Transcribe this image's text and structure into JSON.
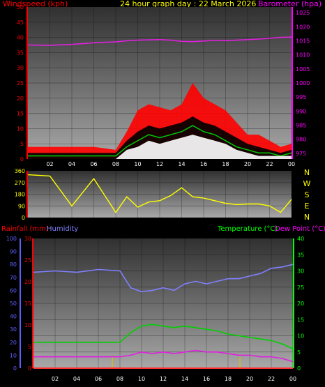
{
  "header": {
    "windspeed_label": "Windspeed (kph)",
    "title": "24 hour graph day : 22 March 2026",
    "barometer_label": "Barometer (hpa)"
  },
  "colors": {
    "wind_avg": "#ff2020",
    "wind_gust": "#ff0000",
    "wind_green": "#00c000",
    "wind_white": "#ffffff",
    "barometer": "#e020e0",
    "direction": "#ffff00",
    "temperature": "#00d000",
    "dewpoint": "#e020e0",
    "humidity": "#8080ff",
    "rainfall": "#ff3030",
    "rain_rate": "#e0c000",
    "axis_red": "#ff0000",
    "axis_magenta": "#ff00ff",
    "axis_green": "#00ff00",
    "axis_blue": "#6060ff",
    "tick_text": "#ffffff",
    "panel_top": "#303030",
    "panel_bottom": "#a8a8a8"
  },
  "chart_data": [
    {
      "type": "area",
      "x_ticks": [
        "02",
        "04",
        "06",
        "08",
        "10",
        "12",
        "14",
        "16",
        "18",
        "20",
        "22",
        "00"
      ],
      "y_left_ticks": [
        "0",
        "5",
        "10",
        "15",
        "20",
        "25",
        "30",
        "35",
        "40",
        "45",
        "50"
      ],
      "y_right_ticks": [
        "975",
        "980",
        "985",
        "990",
        "995",
        "1000",
        "1005",
        "1010",
        "1015",
        "1020",
        "1025"
      ],
      "ylim_left": [
        0,
        50
      ],
      "ylim_right": [
        973,
        1027
      ],
      "x_hours": [
        0,
        2,
        4,
        6,
        8,
        9,
        10,
        11,
        12,
        13,
        14,
        15,
        16,
        17,
        18,
        19,
        20,
        21,
        22,
        23,
        24
      ],
      "wind_gust_kph": [
        4,
        4,
        4,
        4,
        3,
        9,
        16,
        18,
        17,
        16,
        18,
        25,
        20,
        18,
        16,
        12,
        8,
        8,
        6,
        4,
        5
      ],
      "wind_avg_kph": [
        2,
        2,
        2,
        2,
        2,
        6,
        9,
        11,
        10,
        11,
        12,
        14,
        12,
        11,
        9,
        7,
        5,
        4,
        3,
        2,
        3
      ],
      "wind_green_kph": [
        1,
        1,
        1,
        1,
        1,
        4,
        6,
        8,
        7,
        8,
        9,
        11,
        9,
        8,
        6,
        4,
        3,
        2,
        2,
        1,
        2
      ],
      "wind_white_kph": [
        0,
        0,
        0,
        0,
        0,
        3,
        4,
        6,
        5,
        6,
        7,
        8,
        7,
        6,
        5,
        3,
        2,
        1,
        1,
        1,
        1
      ],
      "barometer_hpa": [
        1013.5,
        1013.4,
        1013.7,
        1014.3,
        1014.6,
        1015.0,
        1015.2,
        1015.3,
        1015.4,
        1015.2,
        1014.8,
        1014.7,
        1014.9,
        1015.1,
        1015.0,
        1015.2,
        1015.4,
        1015.6,
        1015.9,
        1016.2,
        1016.3
      ]
    },
    {
      "type": "line",
      "y_ticks": [
        "0",
        "90",
        "180",
        "270",
        "360"
      ],
      "ylim": [
        0,
        360
      ],
      "compass": [
        "N",
        "W",
        "S",
        "E",
        "N"
      ],
      "x_hours": [
        0,
        2,
        4,
        6,
        8,
        9,
        10,
        11,
        12,
        13,
        14,
        15,
        16,
        17,
        18,
        19,
        20,
        21,
        22,
        23,
        24
      ],
      "direction_deg": [
        330,
        320,
        90,
        300,
        40,
        160,
        80,
        120,
        130,
        170,
        230,
        160,
        150,
        130,
        110,
        100,
        105,
        105,
        90,
        40,
        140
      ]
    },
    {
      "type": "line",
      "labels": {
        "rainfall": "Rainfall (mm)",
        "humidity": "Humidity",
        "temperature": "Temperature (°C)",
        "dewpoint": "Dew Point (°C)"
      },
      "x_ticks": [
        "02",
        "04",
        "06",
        "08",
        "10",
        "12",
        "14",
        "16",
        "18",
        "20",
        "22",
        "00"
      ],
      "humidity_ticks": [
        "0",
        "10",
        "20",
        "30",
        "40",
        "50",
        "60",
        "70",
        "80",
        "90",
        "100"
      ],
      "rain_ticks": [
        "0",
        "5",
        "10",
        "15",
        "20",
        "25",
        "30"
      ],
      "temp_ticks": [
        "0",
        "5",
        "10",
        "15",
        "20",
        "25",
        "30",
        "35",
        "40"
      ],
      "humidity_lim": [
        0,
        100
      ],
      "rain_lim": [
        0,
        30
      ],
      "temp_lim": [
        0,
        40
      ],
      "x_hours": [
        0,
        2,
        4,
        6,
        8,
        9,
        10,
        11,
        12,
        13,
        14,
        15,
        16,
        17,
        18,
        19,
        20,
        21,
        22,
        23,
        24
      ],
      "humidity_pct": [
        74,
        75,
        74,
        76,
        75,
        62,
        59,
        60,
        62,
        60,
        65,
        67,
        65,
        67,
        69,
        69,
        71,
        73,
        77,
        78,
        80
      ],
      "temperature_c": [
        8,
        8,
        8,
        8,
        8,
        11,
        13,
        13.5,
        13,
        12.5,
        13,
        12.5,
        12,
        11.5,
        10.5,
        10,
        9.5,
        9,
        8.5,
        7.5,
        6
      ],
      "dewpoint_c": [
        3.5,
        3.5,
        3.5,
        3.5,
        3.5,
        4,
        5,
        4.5,
        5,
        4.5,
        5,
        5.5,
        5,
        5,
        4.5,
        4,
        4,
        3.5,
        3.5,
        3,
        2
      ],
      "rainfall_mm": [
        0,
        0,
        0,
        0,
        0,
        0,
        0,
        0,
        0,
        0,
        0,
        0,
        0,
        0,
        0,
        0,
        0,
        0,
        0,
        0,
        0
      ],
      "rain_rate_spikes_hour": [
        7.3,
        19.1
      ]
    }
  ]
}
